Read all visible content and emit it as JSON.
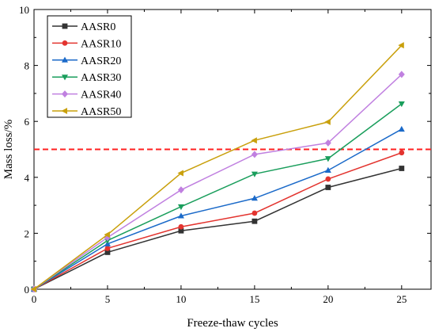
{
  "chart_data": {
    "type": "line",
    "title": "",
    "xlabel": "Freeze-thaw cycles",
    "ylabel": "Mass loss/%",
    "x": [
      0,
      5,
      10,
      15,
      20,
      25
    ],
    "xlim": [
      0,
      27
    ],
    "ylim": [
      0,
      10
    ],
    "xticks": [
      0,
      5,
      10,
      15,
      20,
      25
    ],
    "yticks": [
      0,
      2,
      4,
      6,
      8,
      10
    ],
    "grid": false,
    "legend_position": "top-left",
    "series": [
      {
        "name": "AASR0",
        "color": "#333333",
        "marker": "square",
        "values": [
          0,
          1.32,
          2.09,
          2.43,
          3.64,
          4.32
        ]
      },
      {
        "name": "AASR10",
        "color": "#e3342f",
        "marker": "circle",
        "values": [
          0,
          1.46,
          2.23,
          2.72,
          3.94,
          4.88
        ]
      },
      {
        "name": "AASR20",
        "color": "#1b6ac9",
        "marker": "triangle-up",
        "values": [
          0,
          1.62,
          2.62,
          3.25,
          4.25,
          5.72
        ]
      },
      {
        "name": "AASR30",
        "color": "#1a9e5c",
        "marker": "triangle-down",
        "values": [
          0,
          1.74,
          2.95,
          4.12,
          4.67,
          6.63
        ]
      },
      {
        "name": "AASR40",
        "color": "#c080e0",
        "marker": "diamond",
        "values": [
          0,
          1.85,
          3.55,
          4.82,
          5.23,
          7.68
        ]
      },
      {
        "name": "AASR50",
        "color": "#c9a00c",
        "marker": "triangle-left",
        "values": [
          0,
          1.95,
          4.15,
          5.32,
          5.98,
          8.72
        ]
      }
    ],
    "reference_line": {
      "y": 5,
      "color": "#ff2020",
      "style": "dashed"
    }
  }
}
